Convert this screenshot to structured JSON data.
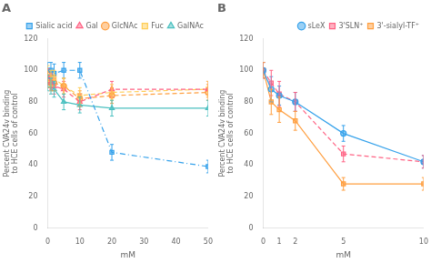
{
  "chart_data": [
    {
      "type": "line",
      "title": "A",
      "xlabel": "mM",
      "ylabel": "Percent CVA24v binding\nto HCE cells of control",
      "x": [
        0,
        1,
        2,
        5,
        10,
        20,
        50
      ],
      "xlim": [
        0,
        50
      ],
      "xticks": [
        0,
        10,
        20,
        30,
        40,
        50
      ],
      "ylim": [
        0,
        120
      ],
      "yticks": [
        0,
        20,
        40,
        60,
        80,
        100,
        120
      ],
      "grid": false,
      "legend": "upper right",
      "series": [
        {
          "name": "Sialic acid",
          "values": [
            100,
            100,
            98,
            100,
            100,
            48,
            39
          ],
          "yerr": [
            5,
            5,
            6,
            5,
            5,
            5,
            4
          ],
          "marker": "square",
          "line_style": "dashdot"
        },
        {
          "name": "Gal",
          "values": [
            96,
            93,
            90,
            88,
            80,
            88,
            88
          ],
          "yerr": [
            5,
            5,
            5,
            5,
            5,
            5,
            5
          ],
          "marker": "triangle",
          "line_style": "dashed"
        },
        {
          "name": "GlcNAc",
          "values": [
            94,
            92,
            92,
            90,
            82,
            84,
            86
          ],
          "yerr": [
            5,
            5,
            5,
            5,
            5,
            5,
            5
          ],
          "marker": "circle",
          "line_style": "dashed"
        },
        {
          "name": "Fuc",
          "values": [
            98,
            95,
            95,
            90,
            84,
            86,
            88
          ],
          "yerr": [
            5,
            5,
            5,
            5,
            5,
            5,
            5
          ],
          "marker": "square",
          "line_style": "dashed"
        },
        {
          "name": "GalNAc",
          "values": [
            92,
            90,
            88,
            80,
            78,
            76,
            76
          ],
          "yerr": [
            5,
            5,
            5,
            5,
            5,
            5,
            5
          ],
          "marker": "triangle",
          "line_style": "solid"
        }
      ]
    },
    {
      "type": "line",
      "title": "B",
      "xlabel": "mM",
      "ylabel": "Percent CVA24v binding\nto HCE cells of control",
      "x": [
        0,
        0.5,
        1,
        2,
        5,
        10
      ],
      "xlim": [
        0,
        10
      ],
      "xticks": [
        0,
        1,
        2,
        5,
        10
      ],
      "ylim": [
        0,
        120
      ],
      "yticks": [
        0,
        20,
        40,
        60,
        80,
        100,
        120
      ],
      "grid": false,
      "legend": "upper right",
      "series": [
        {
          "name": "sLeX",
          "values": [
            100,
            88,
            84,
            80,
            60,
            42
          ],
          "yerr": [
            5,
            8,
            6,
            6,
            5,
            4
          ],
          "marker": "circle",
          "line_style": "solid"
        },
        {
          "name": "3'SLN⁺",
          "values": [
            100,
            92,
            85,
            80,
            47,
            42
          ],
          "yerr": [
            5,
            8,
            8,
            6,
            5,
            4
          ],
          "marker": "square",
          "line_style": "dashed"
        },
        {
          "name": "3'-sialyl-TF⁺",
          "values": [
            100,
            80,
            75,
            68,
            28,
            28
          ],
          "yerr": [
            5,
            8,
            8,
            6,
            4,
            4
          ],
          "marker": "square",
          "line_style": "solid"
        }
      ]
    }
  ]
}
